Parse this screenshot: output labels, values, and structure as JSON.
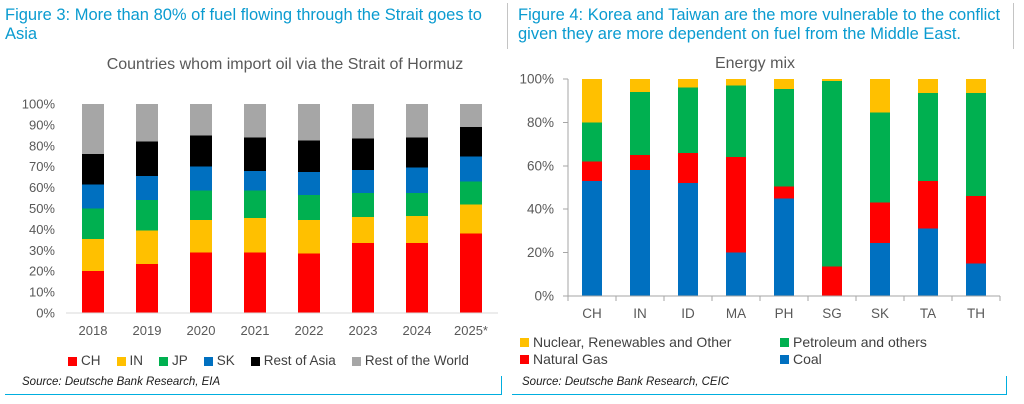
{
  "figure3": {
    "header": "Figure 3: More than 80% of fuel flowing through the Strait goes to Asia",
    "source": "Source: Deutsche Bank Research, EIA"
  },
  "figure4": {
    "header": "Figure 4: Korea and Taiwan are the more vulnerable to the conflict given they are more dependent on fuel from the Middle East.",
    "source": "Source: Deutsche Bank Research, CEIC"
  },
  "chart_data": [
    {
      "type": "bar",
      "stacked": true,
      "title": "Countries whom import oil via the Strait of Hormuz",
      "categories": [
        "2018",
        "2019",
        "2020",
        "2021",
        "2022",
        "2023",
        "2024",
        "2025*"
      ],
      "ylim": [
        0,
        100
      ],
      "yticks": [
        0,
        10,
        20,
        30,
        40,
        50,
        60,
        70,
        80,
        90,
        100
      ],
      "ytick_labels": [
        "0%",
        "10%",
        "20%",
        "30%",
        "40%",
        "50%",
        "60%",
        "70%",
        "80%",
        "90%",
        "100%"
      ],
      "grid": false,
      "legend": "bottom",
      "series": [
        {
          "name": "CH",
          "color": "#FF0000",
          "values": [
            20,
            23.5,
            29,
            29,
            28.5,
            33.5,
            33.5,
            38
          ]
        },
        {
          "name": "IN",
          "color": "#FFC000",
          "values": [
            15.5,
            16,
            15.5,
            16.5,
            16,
            12.5,
            13,
            14
          ]
        },
        {
          "name": "JP",
          "color": "#00B050",
          "values": [
            14.5,
            14.5,
            14,
            13,
            12,
            11.5,
            11,
            11
          ]
        },
        {
          "name": "SK",
          "color": "#0070C0",
          "values": [
            11.5,
            11.5,
            11.5,
            9.5,
            11,
            11,
            12,
            12
          ]
        },
        {
          "name": "Rest of Asia",
          "color": "#000000",
          "values": [
            14.5,
            16.5,
            15,
            16,
            15,
            15,
            14.5,
            14
          ]
        },
        {
          "name": "Rest of the World",
          "color": "#A6A6A6",
          "values": [
            24,
            18,
            15,
            16,
            17.5,
            16.5,
            16,
            11
          ]
        }
      ]
    },
    {
      "type": "bar",
      "stacked": true,
      "title": "Energy mix",
      "categories": [
        "CH",
        "IN",
        "ID",
        "MA",
        "PH",
        "SG",
        "SK",
        "TA",
        "TH"
      ],
      "ylim": [
        0,
        100
      ],
      "yticks": [
        0,
        20,
        40,
        60,
        80,
        100
      ],
      "ytick_labels": [
        "0%",
        "20%",
        "40%",
        "60%",
        "80%",
        "100%"
      ],
      "grid": false,
      "legend": "bottom",
      "series": [
        {
          "name": "Coal",
          "color": "#0070C0",
          "values": [
            53,
            58,
            52,
            20,
            45,
            0,
            24.5,
            31,
            15
          ]
        },
        {
          "name": "Natural Gas",
          "color": "#FF0000",
          "values": [
            9,
            7,
            14,
            44,
            5.5,
            13.5,
            18.5,
            22,
            31
          ]
        },
        {
          "name": "Petroleum and others",
          "color": "#00B050",
          "values": [
            18,
            29,
            30,
            33,
            45,
            85.5,
            41.5,
            40.5,
            47.5
          ]
        },
        {
          "name": "Nuclear, Renewables and Other",
          "color": "#FFC000",
          "values": [
            20,
            6,
            4,
            3,
            4.5,
            1,
            15.5,
            6.5,
            6.5
          ]
        }
      ]
    }
  ]
}
